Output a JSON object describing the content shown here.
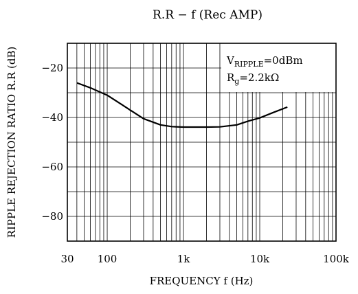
{
  "chart_data": {
    "type": "line",
    "title": "R.R − f (Rec AMP)",
    "xlabel": "FREQUENCY f (Hz)",
    "ylabel": "RIPPLE REJECTION RATIO R.R (dB)",
    "xscale": "log",
    "xlim": [
      30,
      100000
    ],
    "ylim": [
      -90,
      -10
    ],
    "x_ticks": [
      30,
      100,
      1000,
      10000,
      100000
    ],
    "x_tick_labels": [
      "30",
      "100",
      "1k",
      "10k",
      "100k"
    ],
    "y_ticks": [
      -20,
      -40,
      -60,
      -80
    ],
    "y_tick_labels": [
      "−20",
      "−40",
      "−60",
      "−80"
    ],
    "grid": true,
    "annotation": {
      "line1_main": "V",
      "line1_sub": "RIPPLE",
      "line1_rest": "=0dBm",
      "line2_main": "R",
      "line2_sub": "g",
      "line2_rest": "=2.2kΩ",
      "placement": "top-right"
    },
    "series": [
      {
        "x": [
          40,
          60,
          100,
          150,
          200,
          300,
          500,
          700,
          1000,
          2000,
          3000,
          5000,
          7000,
          10000,
          15000,
          23000
        ],
        "y": [
          -26,
          -28,
          -31,
          -34.5,
          -37,
          -40.5,
          -43,
          -43.7,
          -43.9,
          -43.9,
          -43.8,
          -43,
          -41.5,
          -40.2,
          -38,
          -35.8
        ]
      }
    ]
  }
}
